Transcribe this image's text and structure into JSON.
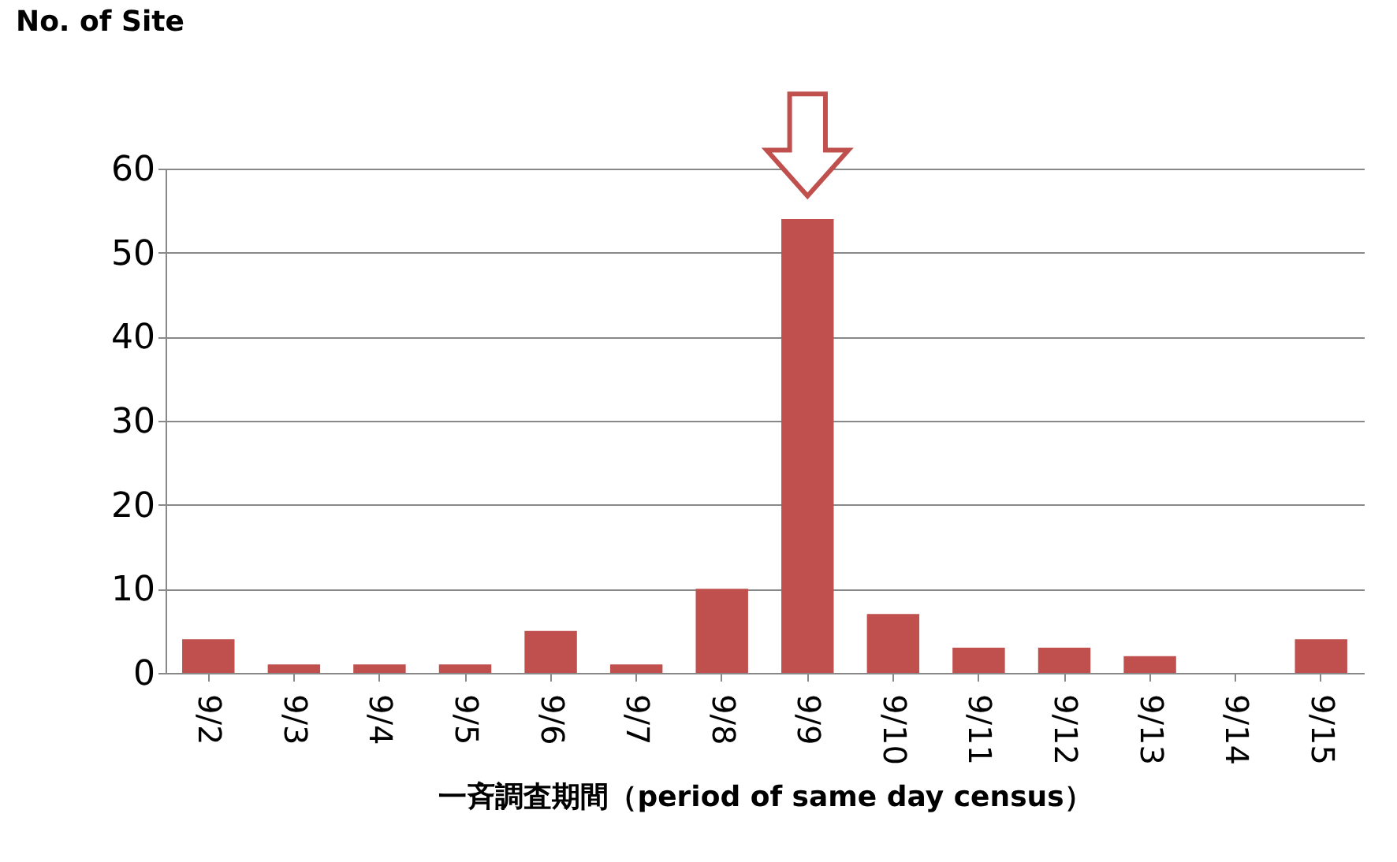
{
  "chart_data": {
    "type": "bar",
    "categories": [
      "9/2",
      "9/3",
      "9/4",
      "9/5",
      "9/6",
      "9/7",
      "9/8",
      "9/9",
      "9/10",
      "9/11",
      "9/12",
      "9/13",
      "9/14",
      "9/15"
    ],
    "values": [
      4,
      1,
      1,
      1,
      5,
      1,
      10,
      54,
      7,
      3,
      3,
      2,
      0,
      4
    ],
    "color": "#c0504d",
    "ylabel": "No. of Site",
    "xlabel": "一斉調査期間（period of same day census）",
    "ylim": [
      0,
      60
    ],
    "yticks": [
      0,
      10,
      20,
      30,
      40,
      50,
      60
    ],
    "grid": "y"
  }
}
